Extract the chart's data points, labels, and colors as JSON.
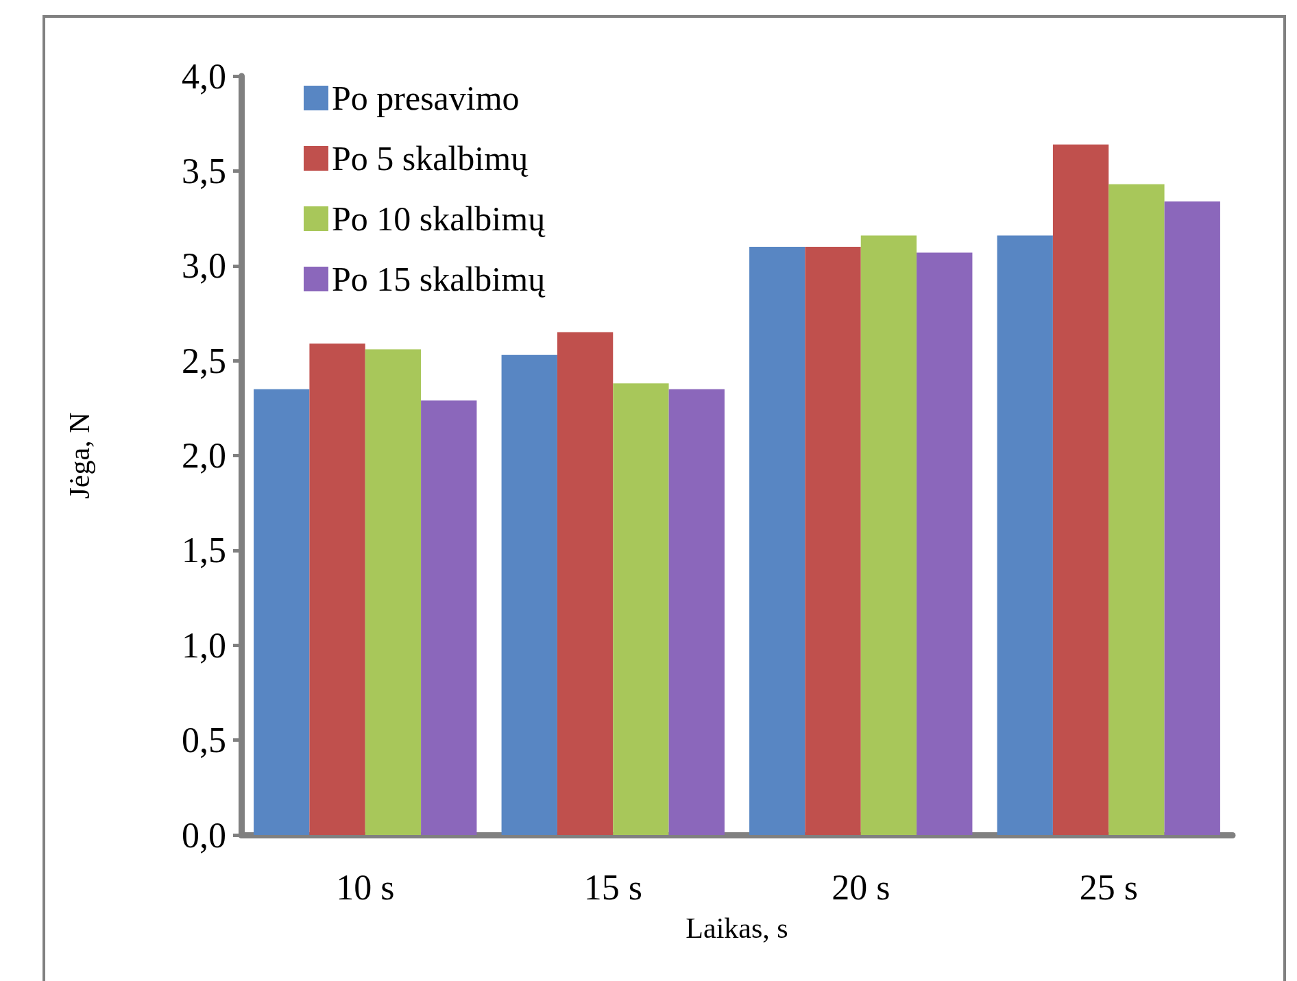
{
  "chart_data": {
    "type": "bar",
    "xlabel": "Laikas, s",
    "ylabel": "Jėga, N",
    "categories": [
      "10 s",
      "15 s",
      "20 s",
      "25 s"
    ],
    "series": [
      {
        "name": "Po presavimo",
        "color": "#5886c3",
        "values": [
          2.35,
          2.53,
          3.1,
          3.16
        ]
      },
      {
        "name": "Po 5 skalbimų",
        "color": "#c0504d",
        "values": [
          2.59,
          2.65,
          3.1,
          3.64
        ]
      },
      {
        "name": "Po 10 skalbimų",
        "color": "#a8c75a",
        "values": [
          2.56,
          2.38,
          3.16,
          3.43
        ]
      },
      {
        "name": "Po 15 skalbimų",
        "color": "#8b67bb",
        "values": [
          2.29,
          2.35,
          3.07,
          3.34
        ]
      }
    ],
    "ylim": [
      0,
      4
    ],
    "yticks": [
      {
        "value": 0,
        "label": "0,0"
      },
      {
        "value": 0.5,
        "label": "0,5"
      },
      {
        "value": 1,
        "label": "1,0"
      },
      {
        "value": 1.5,
        "label": "1,5"
      },
      {
        "value": 2,
        "label": "2,0"
      },
      {
        "value": 2.5,
        "label": "2,5"
      },
      {
        "value": 3,
        "label": "3,0"
      },
      {
        "value": 3.5,
        "label": "3,5"
      },
      {
        "value": 4,
        "label": "4,0"
      }
    ],
    "grid": false,
    "legend": "top left"
  }
}
